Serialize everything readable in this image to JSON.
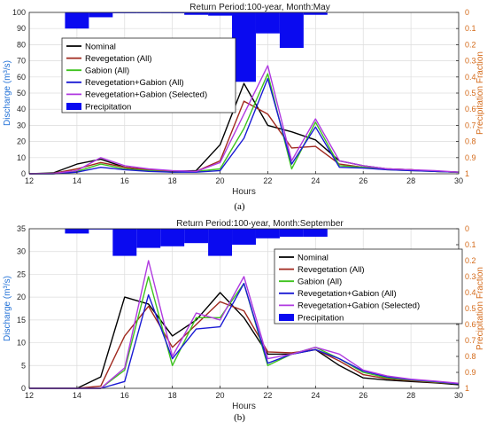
{
  "colors": {
    "nominal": "#000000",
    "revegetation": "#a0281e",
    "gabion": "#3ec31e",
    "reveg_gabion_all": "#1a1ad4",
    "reveg_gabion_selected": "#b03ae0",
    "precipitation": "#0a0af0",
    "left_axis": "#1f6fd6",
    "right_axis": "#d46a1a",
    "grid": "#dcdcdc"
  },
  "chart_data": [
    {
      "type": "line",
      "panel_label": "(a)",
      "title": "Return Period:100-year, Month:May",
      "xlabel": "Hours",
      "ylabel": "Discharge (m³/s)",
      "ylabel_right": "Precipitation Fraction",
      "xlim": [
        12,
        30
      ],
      "ylim": [
        0,
        100
      ],
      "ylim_right": [
        1,
        0
      ],
      "xticks": [
        12,
        14,
        16,
        18,
        20,
        22,
        24,
        26,
        28,
        30
      ],
      "yticks": [
        0,
        10,
        20,
        30,
        40,
        50,
        60,
        70,
        80,
        90,
        100
      ],
      "yticks_right": [
        "0",
        "0.1",
        "0.2",
        "0.3",
        "0.4",
        "0.5",
        "0.6",
        "0.7",
        "0.8",
        "0.9",
        "1"
      ],
      "grid": true,
      "legend_position": "upper-left",
      "x": [
        12,
        13,
        14,
        15,
        16,
        17,
        18,
        19,
        20,
        21,
        22,
        23,
        24,
        25,
        26,
        27,
        28,
        29,
        30
      ],
      "series": [
        {
          "name": "Nominal",
          "key": "nominal",
          "values": [
            0,
            0.5,
            6,
            9,
            4,
            2,
            1.5,
            2,
            18,
            56,
            30,
            26,
            21,
            8,
            5,
            3,
            2.5,
            1.5,
            1
          ]
        },
        {
          "name": "Revegetation (All)",
          "key": "revegetation",
          "values": [
            0,
            0.2,
            3,
            7,
            4,
            2.5,
            1.5,
            1.5,
            8,
            45,
            37,
            16,
            17,
            6,
            4,
            3,
            2.5,
            1.5,
            1
          ]
        },
        {
          "name": "Gabion (All)",
          "key": "gabion",
          "values": [
            0,
            0,
            1.5,
            6,
            3,
            2,
            1,
            1.5,
            3,
            28,
            62,
            3,
            32,
            5,
            4,
            2.5,
            2,
            1.5,
            1
          ]
        },
        {
          "name": "Revegetation+Gabion (All)",
          "key": "reveg_gabion_all",
          "values": [
            0,
            0,
            1,
            4,
            2.5,
            1.5,
            1,
            1,
            2,
            22,
            59,
            6,
            29,
            4,
            3.5,
            2.5,
            2,
            1.5,
            1
          ]
        },
        {
          "name": "Revegetation+Gabion (Selected)",
          "key": "reveg_gabion_selected",
          "values": [
            0,
            0.2,
            2,
            10,
            5,
            3,
            2,
            1.5,
            7,
            37,
            67,
            8,
            34,
            8,
            5,
            3,
            2.5,
            2,
            1
          ]
        }
      ],
      "precipitation": {
        "name": "Precipitation",
        "x": [
          14,
          15,
          16,
          17,
          18,
          19,
          20,
          21,
          22,
          23,
          24
        ],
        "values": [
          0.1,
          0.03,
          0.005,
          0.005,
          0.005,
          0.015,
          0.02,
          0.43,
          0.13,
          0.22,
          0.015
        ]
      }
    },
    {
      "type": "line",
      "panel_label": "(b)",
      "title": "Return Period:100-year, Month:September",
      "xlabel": "Hours",
      "ylabel": "Discharge (m³/s)",
      "ylabel_right": "Precipitation Fraction",
      "xlim": [
        12,
        30
      ],
      "ylim": [
        0,
        35
      ],
      "ylim_right": [
        1,
        0
      ],
      "xticks": [
        12,
        14,
        16,
        18,
        20,
        22,
        24,
        26,
        28,
        30
      ],
      "yticks": [
        0,
        5,
        10,
        15,
        20,
        25,
        30,
        35
      ],
      "yticks_right": [
        "0",
        "0.1",
        "0.2",
        "0.3",
        "0.4",
        "0.5",
        "0.6",
        "0.7",
        "0.8",
        "0.9",
        "1"
      ],
      "grid": true,
      "legend_position": "upper-right",
      "x": [
        12,
        13,
        14,
        15,
        16,
        17,
        18,
        19,
        20,
        21,
        22,
        23,
        24,
        25,
        26,
        27,
        28,
        29,
        30
      ],
      "series": [
        {
          "name": "Nominal",
          "key": "nominal",
          "values": [
            0,
            0,
            0,
            2.5,
            20,
            18.5,
            11.5,
            15,
            21,
            15.5,
            7.5,
            7.5,
            8.5,
            5,
            2.3,
            1.8,
            1.5,
            1.2,
            0.8
          ]
        },
        {
          "name": "Revegetation (All)",
          "key": "revegetation",
          "values": [
            0,
            0,
            0,
            0.5,
            11.5,
            18,
            9,
            14,
            19,
            17,
            8,
            7.8,
            8.5,
            6,
            3,
            2.1,
            1.7,
            1.3,
            1
          ]
        },
        {
          "name": "Gabion (All)",
          "key": "gabion",
          "values": [
            0,
            0,
            0,
            0,
            4,
            24.5,
            5,
            15.5,
            15.5,
            23,
            5,
            7.5,
            9,
            6.5,
            3.5,
            2.3,
            1.8,
            1.4,
            1
          ]
        },
        {
          "name": "Revegetation+Gabion (All)",
          "key": "reveg_gabion_all",
          "values": [
            0,
            0,
            0,
            0,
            1.5,
            20.5,
            6.5,
            13,
            13.5,
            23,
            5.5,
            7.5,
            8.5,
            6.5,
            3.8,
            2.5,
            1.9,
            1.5,
            1
          ]
        },
        {
          "name": "Revegetation+Gabion (Selected)",
          "key": "reveg_gabion_selected",
          "values": [
            0,
            0,
            0,
            0,
            4.5,
            28,
            7,
            16.5,
            15,
            24.5,
            6.5,
            7.5,
            9,
            7.5,
            4,
            2.7,
            2,
            1.6,
            1.1
          ]
        }
      ],
      "precipitation": {
        "name": "Precipitation",
        "x": [
          14,
          15,
          16,
          17,
          18,
          19,
          20,
          21,
          22,
          23,
          24
        ],
        "values": [
          0.03,
          0.005,
          0.17,
          0.12,
          0.11,
          0.09,
          0.17,
          0.1,
          0.06,
          0.05,
          0.05
        ]
      }
    }
  ]
}
